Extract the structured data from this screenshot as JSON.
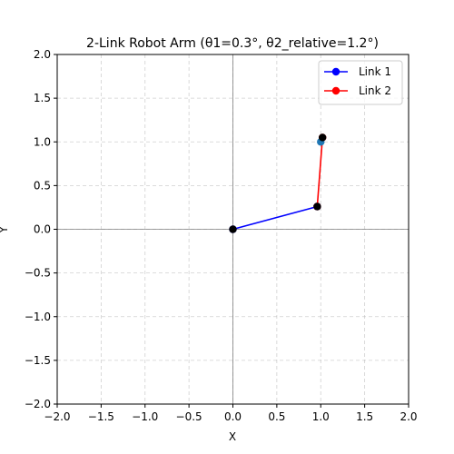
{
  "chart_data": {
    "type": "line",
    "title": "2-Link Robot Arm (θ1=0.3°, θ2_relative=1.2°)",
    "xlabel": "X",
    "ylabel": "Y",
    "xlim": [
      -2.0,
      2.0
    ],
    "ylim": [
      -2.0,
      2.0
    ],
    "xticks": [
      -2.0,
      -1.5,
      -1.0,
      -0.5,
      0.0,
      0.5,
      1.0,
      1.5,
      2.0
    ],
    "yticks": [
      -2.0,
      -1.5,
      -1.0,
      -0.5,
      0.0,
      0.5,
      1.0,
      1.5,
      2.0
    ],
    "xtick_labels": [
      "−2.0",
      "−1.5",
      "−1.0",
      "−0.5",
      "0.0",
      "0.5",
      "1.0",
      "1.5",
      "2.0"
    ],
    "ytick_labels": [
      "−2.0",
      "−1.5",
      "−1.0",
      "−0.5",
      "0.0",
      "0.5",
      "1.0",
      "1.5",
      "2.0"
    ],
    "grid": true,
    "legend_position": "top-right",
    "series": [
      {
        "name": "Link 1",
        "color": "#0000ff",
        "x": [
          0.0,
          0.96
        ],
        "y": [
          0.0,
          0.26
        ]
      },
      {
        "name": "Link 2",
        "color": "#ff0000",
        "x": [
          0.96,
          1.02
        ],
        "y": [
          0.26,
          1.05
        ]
      }
    ],
    "extra_points": [
      {
        "x": 1.0,
        "y": 1.0,
        "color": "#1f77b4"
      }
    ],
    "joints": [
      {
        "x": 0.0,
        "y": 0.0
      },
      {
        "x": 0.96,
        "y": 0.26
      },
      {
        "x": 1.02,
        "y": 1.05
      }
    ],
    "joint_color": "#000000",
    "grid_color": "#b0b0b0",
    "zero_line_color": "#808080"
  }
}
